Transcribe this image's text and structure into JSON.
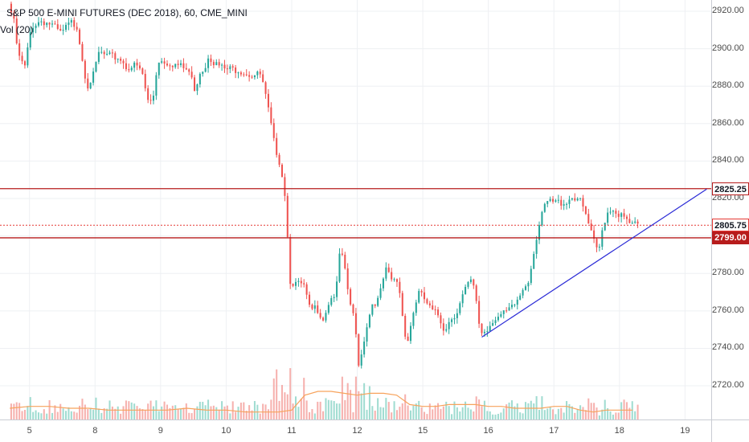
{
  "chart_title": {
    "symbol": "S&P 500 E-MINI FUTURES (DEC 2018)",
    "interval": "60",
    "exchange": "CME_MINI"
  },
  "volume_indicator_label": "Vol (20)",
  "colors": {
    "up": "#26a69a",
    "down": "#ef5350",
    "volume_up": "#8fd6c9",
    "volume_down": "#f4a3a0",
    "volume_ma": "#f7a35c",
    "resistance_line": "#b71c1c",
    "trend_line": "#2a2ad6",
    "current_price_line": "#e53935",
    "grid": "#eef0f3"
  },
  "chart_data": {
    "type": "candlestick",
    "y_axis": {
      "ylim": [
        2702,
        2926
      ],
      "ticks": [
        "2920.00",
        "2900.00",
        "2880.00",
        "2860.00",
        "2840.00",
        "2820.00",
        "2800.00",
        "2780.00",
        "2760.00",
        "2740.00",
        "2720.00"
      ],
      "tick_values": [
        2920,
        2900,
        2880,
        2860,
        2840,
        2820,
        2800,
        2780,
        2760,
        2740,
        2720
      ]
    },
    "x_axis": {
      "labels": [
        "5",
        "8",
        "9",
        "10",
        "11",
        "12",
        "15",
        "16",
        "17",
        "18",
        "19"
      ],
      "label_values": [
        0.3,
        1.3,
        2.3,
        3.3,
        4.3,
        5.3,
        6.3,
        7.3,
        8.3,
        9.3,
        10.3
      ],
      "xlim": [
        -0.15,
        10.7
      ]
    },
    "price_levels": [
      {
        "label": "2825.25",
        "value": 2825.25,
        "style": "resistance"
      },
      {
        "label": "2805.75",
        "value": 2805.75,
        "style": "current"
      },
      {
        "label": "2799.00",
        "value": 2799.0,
        "style": "support"
      }
    ],
    "trend_line": {
      "x": [
        7.2,
        10.63
      ],
      "y": [
        2746,
        2825
      ]
    },
    "price_path": [
      [
        0.0,
        2924
      ],
      [
        0.08,
        2915
      ],
      [
        0.15,
        2896
      ],
      [
        0.25,
        2890
      ],
      [
        0.35,
        2912
      ],
      [
        0.5,
        2915
      ],
      [
        0.65,
        2913
      ],
      [
        0.8,
        2908
      ],
      [
        0.95,
        2914
      ],
      [
        1.05,
        2912
      ],
      [
        1.12,
        2896
      ],
      [
        1.2,
        2880
      ],
      [
        1.3,
        2886
      ],
      [
        1.38,
        2898
      ],
      [
        1.5,
        2896
      ],
      [
        1.7,
        2895
      ],
      [
        1.8,
        2890
      ],
      [
        1.95,
        2891
      ],
      [
        2.05,
        2886
      ],
      [
        2.12,
        2872
      ],
      [
        2.2,
        2872
      ],
      [
        2.28,
        2894
      ],
      [
        2.4,
        2893
      ],
      [
        2.6,
        2891
      ],
      [
        2.75,
        2888
      ],
      [
        2.85,
        2878
      ],
      [
        2.92,
        2888
      ],
      [
        3.0,
        2890
      ],
      [
        3.05,
        2897
      ],
      [
        3.15,
        2892
      ],
      [
        3.3,
        2889
      ],
      [
        3.5,
        2889
      ],
      [
        3.7,
        2886
      ],
      [
        3.85,
        2886
      ],
      [
        3.95,
        2870
      ],
      [
        4.05,
        2850
      ],
      [
        4.15,
        2838
      ],
      [
        4.22,
        2822
      ],
      [
        4.27,
        2792
      ],
      [
        4.3,
        2776
      ],
      [
        4.4,
        2774
      ],
      [
        4.5,
        2774
      ],
      [
        4.6,
        2760
      ],
      [
        4.7,
        2762
      ],
      [
        4.8,
        2756
      ],
      [
        4.9,
        2766
      ],
      [
        5.0,
        2770
      ],
      [
        5.05,
        2790
      ],
      [
        5.1,
        2788
      ],
      [
        5.2,
        2766
      ],
      [
        5.28,
        2754
      ],
      [
        5.35,
        2730
      ],
      [
        5.45,
        2750
      ],
      [
        5.55,
        2764
      ],
      [
        5.65,
        2766
      ],
      [
        5.75,
        2782
      ],
      [
        5.85,
        2776
      ],
      [
        5.95,
        2776
      ],
      [
        6.0,
        2760
      ],
      [
        6.08,
        2742
      ],
      [
        6.15,
        2755
      ],
      [
        6.25,
        2770
      ],
      [
        6.35,
        2766
      ],
      [
        6.45,
        2760
      ],
      [
        6.55,
        2758
      ],
      [
        6.65,
        2750
      ],
      [
        6.75,
        2756
      ],
      [
        6.85,
        2760
      ],
      [
        6.95,
        2770
      ],
      [
        7.05,
        2776
      ],
      [
        7.12,
        2770
      ],
      [
        7.2,
        2748
      ],
      [
        7.3,
        2750
      ],
      [
        7.4,
        2756
      ],
      [
        7.55,
        2758
      ],
      [
        7.7,
        2762
      ],
      [
        7.8,
        2768
      ],
      [
        7.85,
        2772
      ],
      [
        7.95,
        2778
      ],
      [
        8.0,
        2790
      ],
      [
        8.1,
        2806
      ],
      [
        8.2,
        2818
      ],
      [
        8.35,
        2818
      ],
      [
        8.5,
        2818
      ],
      [
        8.6,
        2821
      ],
      [
        8.7,
        2820
      ],
      [
        8.8,
        2812
      ],
      [
        8.9,
        2800
      ],
      [
        9.0,
        2790
      ],
      [
        9.05,
        2802
      ],
      [
        9.12,
        2812
      ],
      [
        9.2,
        2815
      ],
      [
        9.3,
        2812
      ],
      [
        9.4,
        2809
      ],
      [
        9.5,
        2806
      ],
      [
        9.6,
        2805.75
      ]
    ],
    "volume_ma_path": [
      [
        0.0,
        2708
      ],
      [
        0.3,
        2709
      ],
      [
        0.6,
        2709
      ],
      [
        0.9,
        2708
      ],
      [
        1.2,
        2708
      ],
      [
        1.5,
        2707
      ],
      [
        1.8,
        2707
      ],
      [
        2.1,
        2707
      ],
      [
        2.4,
        2707
      ],
      [
        2.7,
        2708
      ],
      [
        3.0,
        2707
      ],
      [
        3.3,
        2707
      ],
      [
        3.6,
        2706
      ],
      [
        3.9,
        2706
      ],
      [
        4.1,
        2706
      ],
      [
        4.3,
        2707
      ],
      [
        4.5,
        2715
      ],
      [
        4.7,
        2717
      ],
      [
        4.9,
        2717
      ],
      [
        5.1,
        2716
      ],
      [
        5.3,
        2715
      ],
      [
        5.5,
        2716
      ],
      [
        5.7,
        2716
      ],
      [
        5.9,
        2715
      ],
      [
        6.1,
        2710
      ],
      [
        6.3,
        2709
      ],
      [
        6.5,
        2709
      ],
      [
        6.7,
        2710
      ],
      [
        6.9,
        2710
      ],
      [
        7.1,
        2710
      ],
      [
        7.3,
        2709
      ],
      [
        7.5,
        2709
      ],
      [
        7.7,
        2708
      ],
      [
        7.9,
        2708
      ],
      [
        8.1,
        2708
      ],
      [
        8.3,
        2709
      ],
      [
        8.5,
        2709
      ],
      [
        8.7,
        2707
      ],
      [
        8.9,
        2706
      ],
      [
        9.1,
        2707
      ],
      [
        9.3,
        2707
      ],
      [
        9.5,
        2707
      ]
    ]
  }
}
